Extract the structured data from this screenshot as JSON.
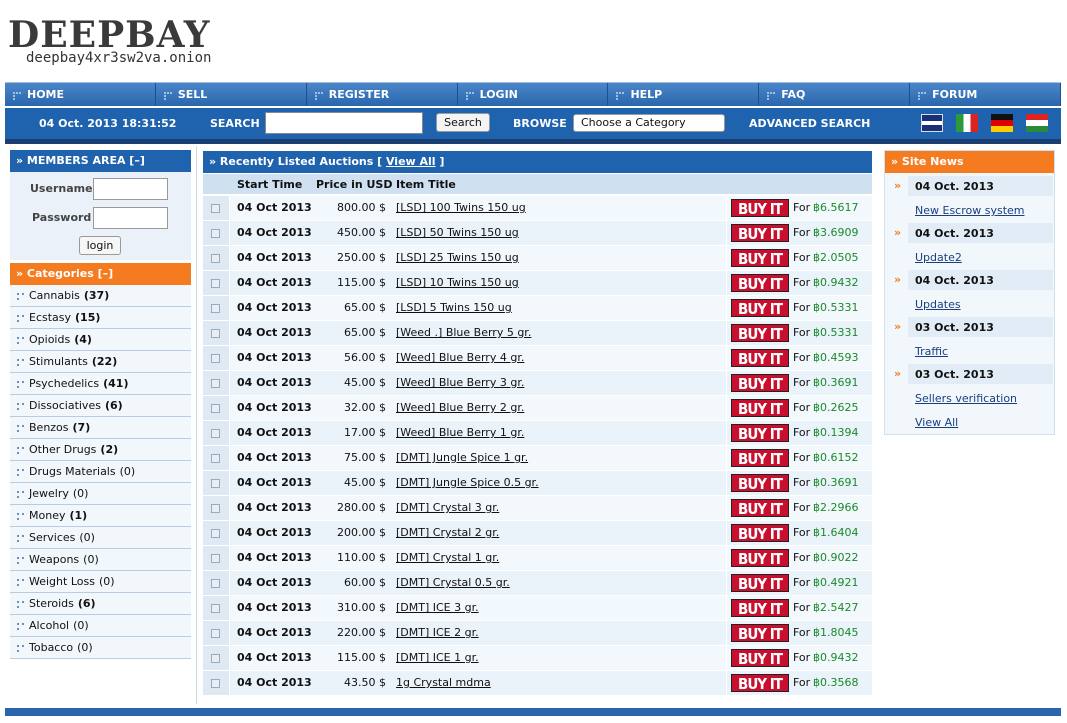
{
  "logo": {
    "title": "DEEPBAY",
    "address": "deepbay4xr3sw2va.onion"
  },
  "nav": [
    "HOME",
    "SELL",
    "REGISTER",
    "LOGIN",
    "HELP",
    "FAQ",
    "FORUM"
  ],
  "toolbar": {
    "datetime": "04 Oct. 2013 18:31:52",
    "search_label": "SEARCH",
    "search_button": "Search",
    "browse_label": "BROWSE",
    "browse_select": "Choose a Category",
    "advanced_search": "ADVANCED SEARCH"
  },
  "members": {
    "title": "» MEMBERS AREA [–]",
    "username_label": "Username",
    "password_label": "Password",
    "login_button": "login"
  },
  "categories": {
    "title": "» Categories [–]",
    "items": [
      {
        "name": "Cannabis",
        "count": "(37)"
      },
      {
        "name": "Ecstasy",
        "count": "(15)"
      },
      {
        "name": "Opioids",
        "count": "(4)"
      },
      {
        "name": "Stimulants",
        "count": "(22)"
      },
      {
        "name": "Psychedelics",
        "count": "(41)"
      },
      {
        "name": "Dissociatives",
        "count": "(6)"
      },
      {
        "name": "Benzos",
        "count": "(7)"
      },
      {
        "name": "Other Drugs",
        "count": "(2)"
      },
      {
        "name": "Drugs Materials",
        "count": "(0)"
      },
      {
        "name": "Jewelry",
        "count": "(0)"
      },
      {
        "name": "Money",
        "count": "(1)"
      },
      {
        "name": "Services",
        "count": "(0)"
      },
      {
        "name": "Weapons",
        "count": "(0)"
      },
      {
        "name": "Weight Loss",
        "count": "(0)"
      },
      {
        "name": "Steroids",
        "count": "(6)"
      },
      {
        "name": "Alcohol",
        "count": "(0)"
      },
      {
        "name": "Tobacco",
        "count": "(0)"
      }
    ]
  },
  "listings": {
    "title_prefix": "» Recently Listed Auctions [ ",
    "view_all": "View All",
    "title_suffix": " ]",
    "headers": [
      "Start Time",
      "Price in USD",
      "Item Title"
    ],
    "buy_button": "BUY IT",
    "for_label": "For",
    "rows": [
      {
        "date": "04 Oct 2013",
        "price": "800.00 $",
        "title": "[LSD] 100 Twins 150 ug",
        "btc": "฿6.5617"
      },
      {
        "date": "04 Oct 2013",
        "price": "450.00 $",
        "title": "[LSD] 50 Twins 150 ug",
        "btc": "฿3.6909"
      },
      {
        "date": "04 Oct 2013",
        "price": "250.00 $",
        "title": "[LSD] 25 Twins 150 ug",
        "btc": "฿2.0505"
      },
      {
        "date": "04 Oct 2013",
        "price": "115.00 $",
        "title": "[LSD] 10 Twins 150 ug",
        "btc": "฿0.9432"
      },
      {
        "date": "04 Oct 2013",
        "price": "65.00 $",
        "title": "[LSD] 5 Twins 150 ug",
        "btc": "฿0.5331"
      },
      {
        "date": "04 Oct 2013",
        "price": "65.00 $",
        "title": "[Weed .] Blue Berry 5 gr.",
        "btc": "฿0.5331"
      },
      {
        "date": "04 Oct 2013",
        "price": "56.00 $",
        "title": "[Weed] Blue Berry 4 gr.",
        "btc": "฿0.4593"
      },
      {
        "date": "04 Oct 2013",
        "price": "45.00 $",
        "title": "[Weed] Blue Berry 3 gr.",
        "btc": "฿0.3691"
      },
      {
        "date": "04 Oct 2013",
        "price": "32.00 $",
        "title": "[Weed] Blue Berry 2 gr.",
        "btc": "฿0.2625"
      },
      {
        "date": "04 Oct 2013",
        "price": "17.00 $",
        "title": "[Weed] Blue Berry 1 gr.",
        "btc": "฿0.1394"
      },
      {
        "date": "04 Oct 2013",
        "price": "75.00 $",
        "title": "[DMT] Jungle Spice 1 gr.",
        "btc": "฿0.6152"
      },
      {
        "date": "04 Oct 2013",
        "price": "45.00 $",
        "title": "[DMT] Jungle Spice 0.5 gr.",
        "btc": "฿0.3691"
      },
      {
        "date": "04 Oct 2013",
        "price": "280.00 $",
        "title": "[DMT] Crystal 3 gr.",
        "btc": "฿2.2966"
      },
      {
        "date": "04 Oct 2013",
        "price": "200.00 $",
        "title": "[DMT] Crystal 2 gr.",
        "btc": "฿1.6404"
      },
      {
        "date": "04 Oct 2013",
        "price": "110.00 $",
        "title": "[DMT] Crystal 1 gr.",
        "btc": "฿0.9022"
      },
      {
        "date": "04 Oct 2013",
        "price": "60.00 $",
        "title": "[DMT] Crystal 0.5 gr.",
        "btc": "฿0.4921"
      },
      {
        "date": "04 Oct 2013",
        "price": "310.00 $",
        "title": "[DMT] ICE 3 gr.",
        "btc": "฿2.5427"
      },
      {
        "date": "04 Oct 2013",
        "price": "220.00 $",
        "title": "[DMT] ICE 2 gr.",
        "btc": "฿1.8045"
      },
      {
        "date": "04 Oct 2013",
        "price": "115.00 $",
        "title": "[DMT] ICE 1 gr.",
        "btc": "฿0.9432"
      },
      {
        "date": "04 Oct 2013",
        "price": "43.50 $",
        "title": "1g Crystal mdma",
        "btc": "฿0.3568"
      }
    ]
  },
  "news": {
    "title": "» Site News",
    "bullet": "»",
    "items": [
      {
        "date": "04 Oct. 2013",
        "link": "New Escrow system"
      },
      {
        "date": "04 Oct. 2013",
        "link": "Update2"
      },
      {
        "date": "04 Oct. 2013",
        "link": "Updates"
      },
      {
        "date": "03 Oct. 2013",
        "link": "Traffic"
      },
      {
        "date": "03 Oct. 2013",
        "link": "Sellers verification"
      }
    ],
    "view_all": "View All"
  }
}
